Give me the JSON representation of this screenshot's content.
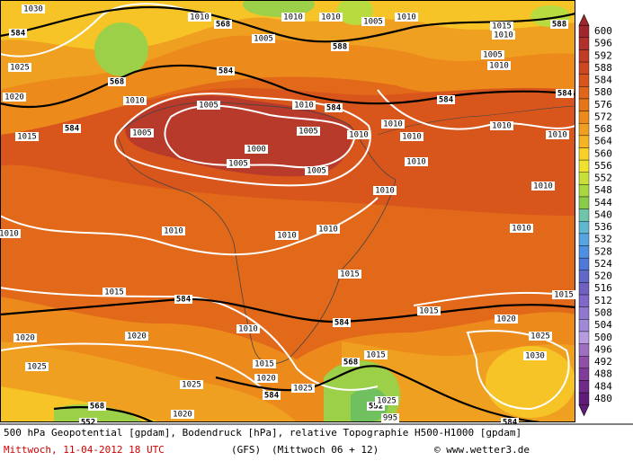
{
  "map": {
    "labels": [
      "1030",
      "1010",
      "568",
      "1005",
      "1010",
      "1010",
      "1005",
      "1010",
      "584",
      "588",
      "1015",
      "1010",
      "588",
      "1025",
      "568",
      "584",
      "1005",
      "1010",
      "1020",
      "1010",
      "1005",
      "1010",
      "584",
      "584",
      "584",
      "1015",
      "584",
      "1005",
      "1000",
      "1005",
      "1010",
      "1010",
      "1010",
      "1010",
      "1010",
      "1005",
      "1005",
      "1010",
      "1010",
      "1010",
      "1010",
      "1010",
      "1010",
      "1010",
      "1010",
      "1015",
      "1015",
      "584",
      "1015",
      "1015",
      "1010",
      "584",
      "1020",
      "1020",
      "1020",
      "1025",
      "1015",
      "1030",
      "568",
      "1025",
      "1015",
      "1020",
      "1025",
      "584",
      "1025",
      "568",
      "552",
      "1025",
      "1020",
      "584",
      "552",
      "995"
    ]
  },
  "colorbar": {
    "labels": [
      600,
      596,
      592,
      588,
      584,
      580,
      576,
      572,
      568,
      564,
      560,
      556,
      552,
      548,
      544,
      540,
      536,
      532,
      528,
      524,
      520,
      516,
      512,
      508,
      504,
      500,
      496,
      492,
      488,
      484,
      480
    ],
    "colors": [
      "#a0282c",
      "#b0302a",
      "#c03c26",
      "#cc4820",
      "#d8561c",
      "#e0661a",
      "#e6761a",
      "#ec8a1c",
      "#f0a020",
      "#f4b424",
      "#f8d028",
      "#f0e030",
      "#c8e038",
      "#a8d840",
      "#88cc48",
      "#70c4a8",
      "#60b8d0",
      "#58a4e0",
      "#5090e0",
      "#5078d8",
      "#6068c8",
      "#7060c0",
      "#8068c8",
      "#9078d0",
      "#a08ad8",
      "#b89ce0",
      "#a070c0",
      "#9050a8",
      "#803c98",
      "#702a88",
      "#601c78"
    ]
  },
  "footer": {
    "line1": "500 hPa Geopotential [gpdam], Bodendruck [hPa], relative Topographie H500-H1000 [gpdam]",
    "date": "Mittwoch, 11-04-2012  18 UTC",
    "model": "(GFS)",
    "run": "(Mittwoch 06 + 12)",
    "copyright": "© www.wetter3.de"
  }
}
